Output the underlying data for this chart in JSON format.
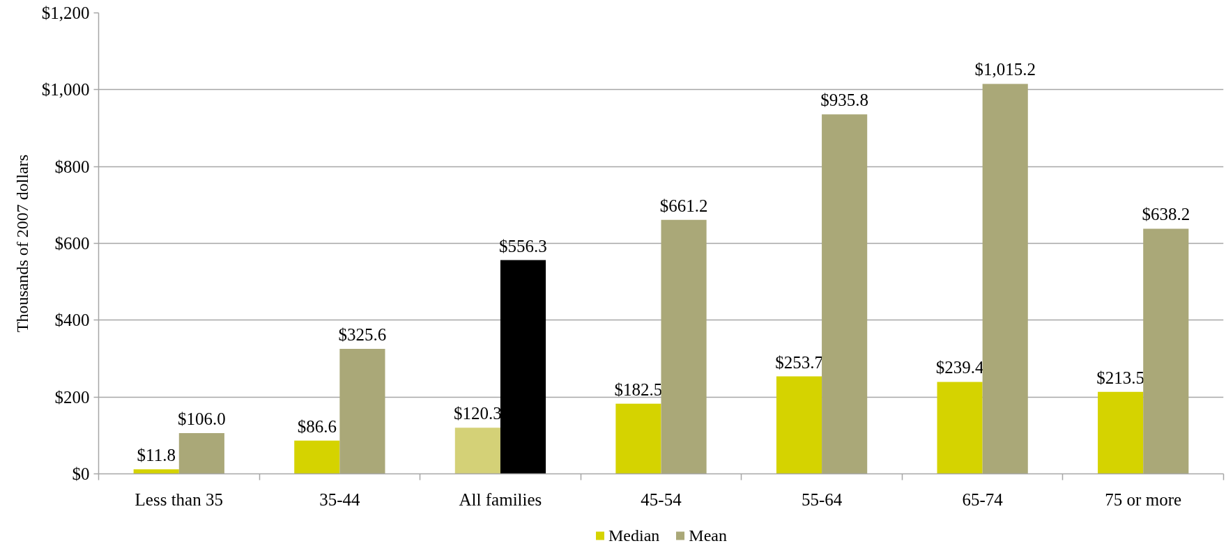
{
  "chart_data": {
    "type": "bar",
    "ylabel": "Thousands of 2007 dollars",
    "categories": [
      "Less than 35",
      "35-44",
      "All families",
      "45-54",
      "55-64",
      "65-74",
      "75 or more"
    ],
    "series": [
      {
        "name": "Median",
        "color": "#d5d300",
        "colors": [
          "#d5d300",
          "#d5d300",
          "#d4d177",
          "#d5d300",
          "#d5d300",
          "#d5d300",
          "#d5d300"
        ],
        "values": [
          11.8,
          86.6,
          120.3,
          182.5,
          253.7,
          239.4,
          213.5
        ],
        "value_labels": [
          "$11.8",
          "$86.6",
          "$120.3",
          "$182.5",
          "$253.7",
          "$239.4",
          "$213.5"
        ]
      },
      {
        "name": "Mean",
        "color": "#aaa878",
        "colors": [
          "#aaa878",
          "#aaa878",
          "#000000",
          "#aaa878",
          "#aaa878",
          "#aaa878",
          "#aaa878"
        ],
        "values": [
          106.0,
          325.6,
          556.3,
          661.2,
          935.8,
          1015.2,
          638.2
        ],
        "value_labels": [
          "$106.0",
          "$325.6",
          "$556.3",
          "$661.2",
          "$935.8",
          "$1,015.2",
          "$638.2"
        ]
      }
    ],
    "ylim": [
      0,
      1200
    ],
    "yticks": [
      {
        "value": 0,
        "label": "$0"
      },
      {
        "value": 200,
        "label": "$200"
      },
      {
        "value": 400,
        "label": "$400"
      },
      {
        "value": 600,
        "label": "$600"
      },
      {
        "value": 800,
        "label": "$800"
      },
      {
        "value": 1000,
        "label": "$1,000"
      },
      {
        "value": 1200,
        "label": "$1,200"
      }
    ],
    "grid": "y",
    "legend": "bottom"
  }
}
